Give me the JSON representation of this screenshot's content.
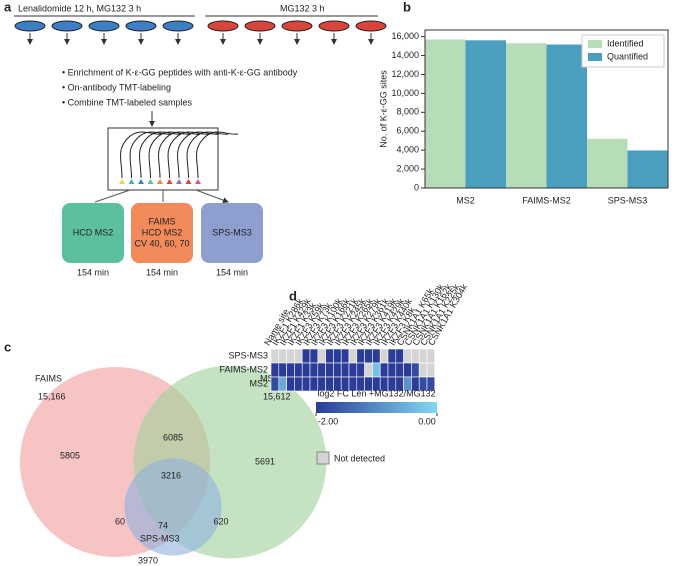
{
  "panel_a": {
    "label": "a",
    "group1": "Lenalidomide 12 h, MG132 3 h",
    "group2": "MG132 3 h",
    "steps": [
      "• Enrichment of K-ε-GG peptides with anti-K-ε-GG antibody",
      "• On-antibody TMT-labeling",
      "• Combine TMT-labeled samples"
    ],
    "methods": [
      {
        "lines": [
          "HCD MS2"
        ],
        "time": "154 min",
        "color": "#5cbf9f"
      },
      {
        "lines": [
          "FAIMS",
          "HCD MS2",
          "CV 40, 60, 70"
        ],
        "time": "154 min",
        "color": "#f28a5c"
      },
      {
        "lines": [
          "SPS-MS3"
        ],
        "time": "154 min",
        "color": "#8e9fcf"
      }
    ]
  },
  "chart_data": [
    {
      "type": "bar",
      "label": "b",
      "ylabel": "No. of K-ε-GG sites",
      "categories": [
        "MS2",
        "FAIMS-MS2",
        "SPS-MS3"
      ],
      "series": [
        {
          "name": "Identified",
          "color": "#b7dcb8",
          "values": [
            15700,
            15300,
            5200
          ]
        },
        {
          "name": "Quantified",
          "color": "#4b9fbe",
          "values": [
            15612,
            15166,
            3970
          ]
        }
      ],
      "ylim": [
        0,
        16700
      ],
      "yticks": [
        0,
        {
          "value": 2000,
          "label": "2,000"
        },
        {
          "value": 4000,
          "label": "4,000"
        },
        {
          "value": 6000,
          "label": "6,000"
        },
        {
          "value": 8000,
          "label": "8,000"
        },
        {
          "value": 10000,
          "label": "10,000"
        },
        {
          "value": 12000,
          "label": "12,000"
        },
        {
          "value": 14000,
          "label": "14,000"
        },
        {
          "value": 16000,
          "label": "16,000"
        }
      ],
      "legend": "upper right"
    },
    {
      "type": "venn",
      "label": "c",
      "sets": [
        {
          "name": "FAIMS",
          "size": 15166,
          "size_label": "15,166",
          "color": "#f29c9c"
        },
        {
          "name": "MS2",
          "size": 15612,
          "size_label": "15,612",
          "color": "#9fd19a"
        },
        {
          "name": "SPS-MS3",
          "size": 3970,
          "size_label": "3970",
          "color": "#8fb0e0"
        }
      ],
      "regions": [
        {
          "sets": [
            "FAIMS"
          ],
          "value": 5805
        },
        {
          "sets": [
            "MS2"
          ],
          "value": 5691
        },
        {
          "sets": [
            "FAIMS",
            "MS2"
          ],
          "value": 6085
        },
        {
          "sets": [
            "FAIMS",
            "MS2",
            "SPS-MS3"
          ],
          "value": 3216
        },
        {
          "sets": [
            "FAIMS",
            "SPS-MS3"
          ],
          "value": 60
        },
        {
          "sets": [
            "MS2",
            "SPS-MS3"
          ],
          "value": 620
        },
        {
          "sets": [
            "SPS-MS3"
          ],
          "value": 74
        }
      ]
    },
    {
      "type": "heatmap",
      "label": "d",
      "column_header": "Name site",
      "columns": [
        "IKZF1 K286k",
        "IKZF1 K429k",
        "IKZF1 K33k",
        "IKZF3 K59k",
        "IKZF3 K73k",
        "IKZF3 K100k",
        "IKZF3 K166k",
        "IKZF3 K221k",
        "IKZF3 K245k",
        "IKZF3 K265k",
        "IKZF3 K279k",
        "IKZF3 K361k",
        "IKZF3 K419k",
        "IKZF3 K429k",
        "IKZF3 K440k",
        "IKZF3 K8k",
        "CSNK1A1 K65k",
        "CSNK1A1 K130k",
        "CSNK1A1 K162k",
        "CSNK1A1 K225k",
        "CSNK1A1 K304k"
      ],
      "rows": [
        "SPS-MS3",
        "FAIMS-MS2",
        "MS2"
      ],
      "values": [
        [
          null,
          null,
          null,
          null,
          -2,
          -2,
          null,
          -2,
          -2,
          -2,
          null,
          -2,
          -2,
          -2,
          null,
          -2,
          -2,
          null,
          null,
          null,
          null
        ],
        [
          -2,
          -2,
          -2,
          -2,
          -2,
          -2,
          -2,
          -2,
          -2,
          -2,
          -2,
          -2,
          null,
          -0.3,
          -2,
          -2,
          -2,
          -2,
          -1.8,
          null,
          null
        ],
        [
          -1.8,
          -0.6,
          -2,
          -2,
          -2,
          -2,
          -2,
          -2,
          -2,
          -2,
          -2,
          -2,
          -2,
          -2,
          -2,
          -2,
          -2,
          -0.9,
          -2,
          -1.8,
          -1.8
        ]
      ],
      "colorbar_label": "log2 FC Len +MG132/MG132",
      "clim": [
        -2,
        0
      ],
      "cticks": [
        {
          "value": -2,
          "label": "-2.00"
        },
        {
          "value": 0,
          "label": "0.00"
        }
      ],
      "cmap": [
        "#2a3b98",
        "#82d9f2"
      ],
      "missing_color": "#d4d4d4",
      "missing_label": "Not detected"
    }
  ]
}
